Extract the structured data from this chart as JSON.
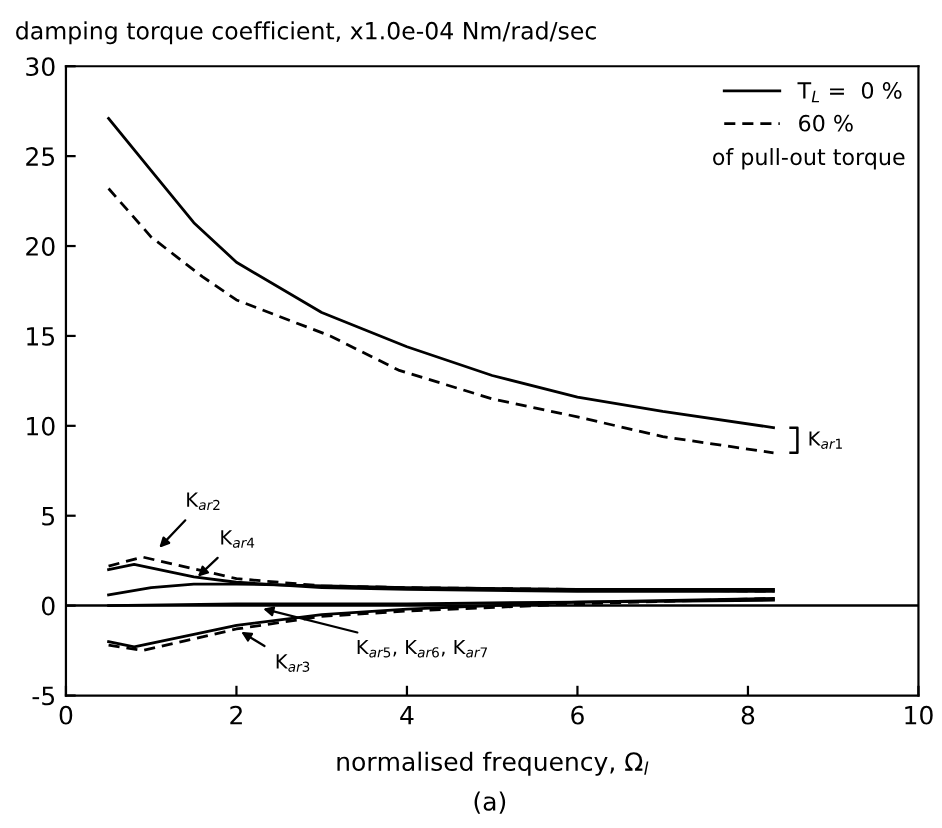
{
  "chart_data": {
    "type": "line",
    "ylabel": "damping torque coefficient, x1.0e-04 Nm/rad/sec",
    "xlabel": "normalised frequency, Ω$_{l}$",
    "xlim": [
      0,
      10
    ],
    "xticks": [
      0,
      2,
      4,
      6,
      8,
      10
    ],
    "ylim": [
      -5,
      30
    ],
    "yticks": [
      -5,
      0,
      5,
      10,
      15,
      20,
      25,
      30
    ],
    "grid": false,
    "legend": "top right",
    "marker": "none",
    "series": [
      {
        "name": "T$_{L}$ =  0 %",
        "color": "#000000",
        "line_style": "solid",
        "x": [
          0.5,
          1,
          1.5,
          2,
          3,
          4,
          5,
          6,
          7,
          8.3
        ],
        "values": [
          27.1,
          24.2,
          21.3,
          19.1,
          16.3,
          14.4,
          12.8,
          11.6,
          10.8,
          9.9
        ]
      },
      {
        "name": "60 %",
        "color": "#000000",
        "line_style": "dashed",
        "x": [
          0.5,
          1,
          1.6,
          2,
          3.1,
          3.9,
          5,
          6,
          7,
          8.3
        ],
        "values": [
          23.2,
          20.5,
          18.3,
          17.0,
          15.0,
          13.1,
          11.5,
          10.5,
          9.4,
          8.5
        ]
      },
      {
        "color": "#000000",
        "line_style": "solid",
        "x": [
          0.5,
          0.8,
          1.5,
          2,
          3,
          4,
          6,
          8.3
        ],
        "values": [
          2.0,
          2.3,
          1.6,
          1.3,
          1.0,
          0.9,
          0.8,
          0.8
        ]
      },
      {
        "color": "#000000",
        "line_style": "dashed",
        "x": [
          0.5,
          0.9,
          2,
          3,
          4,
          6,
          8.3
        ],
        "values": [
          2.2,
          2.7,
          1.5,
          1.1,
          1.0,
          0.9,
          0.8
        ]
      },
      {
        "color": "#000000",
        "line_style": "solid",
        "x": [
          0.5,
          1,
          1.5,
          2,
          4,
          6,
          8.3
        ],
        "values": [
          0.6,
          1.0,
          1.2,
          1.2,
          1.0,
          0.9,
          0.9
        ]
      },
      {
        "color": "#000000",
        "line_style": "solid",
        "x": [
          0.5,
          0.8,
          1.5,
          2,
          3,
          4,
          6,
          8.3
        ],
        "values": [
          -2.0,
          -2.3,
          -1.6,
          -1.1,
          -0.5,
          -0.2,
          0.2,
          0.4
        ]
      },
      {
        "color": "#000000",
        "line_style": "dashed",
        "x": [
          0.5,
          0.9,
          2,
          3,
          4,
          6,
          8.3
        ],
        "values": [
          -2.2,
          -2.5,
          -1.3,
          -0.6,
          -0.3,
          0.1,
          0.4
        ]
      },
      {
        "color": "#000000",
        "line_style": "solid",
        "x": [
          0.5,
          2,
          4,
          6,
          8.3
        ],
        "values": [
          0.0,
          0.1,
          0.1,
          0.2,
          0.3
        ]
      }
    ],
    "ref_lines": [
      {
        "axis": "y",
        "value": 0,
        "color": "#000000",
        "line_style": "solid"
      }
    ],
    "annotations": [
      "K$_{ar1}$",
      {
        "text": "K$_{ar2}$",
        "x": 1.05,
        "y": 3.0
      },
      {
        "text": "K$_{ar4}$",
        "x": 1.5,
        "y": 1.4
      },
      {
        "text": "K$_{ar3}$",
        "x": 2.0,
        "y": -1.3
      },
      {
        "text": "K$_{ar5}$, K$_{ar6}$, K$_{ar7}$",
        "x": 2.25,
        "y": -0.1
      },
      "of pull-out torque",
      "(a)"
    ]
  }
}
